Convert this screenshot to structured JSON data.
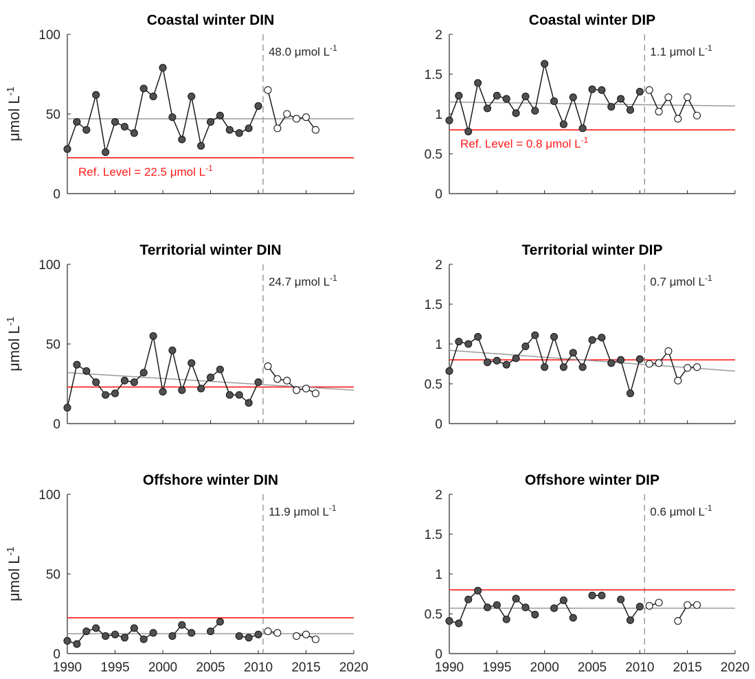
{
  "chart_data": [
    {
      "type": "line",
      "title": "Coastal winter DIN",
      "ylabel": "μmol L⁻¹",
      "ylim": [
        0,
        100
      ],
      "yticks": [
        "0",
        "50",
        "100"
      ],
      "xlim": [
        1990,
        2020
      ],
      "xticks": [],
      "assessment_year": 2010.5,
      "assessment_label": "48.0 μmol L⁻¹",
      "ref_level": 22.5,
      "ref_label": "Ref. Level = 22.5 μmol L⁻¹",
      "trend": [
        [
          1990,
          47
        ],
        [
          2020,
          47
        ]
      ],
      "series": [
        {
          "name": "filled",
          "points": [
            [
              1990,
              28
            ],
            [
              1991,
              45
            ],
            [
              1992,
              40
            ],
            [
              1993,
              62
            ],
            [
              1994,
              26
            ],
            [
              1995,
              45
            ],
            [
              1996,
              42
            ],
            [
              1997,
              38
            ],
            [
              1998,
              66
            ],
            [
              1999,
              61
            ],
            [
              2000,
              79
            ],
            [
              2001,
              48
            ],
            [
              2002,
              34
            ],
            [
              2003,
              61
            ],
            [
              2004,
              30
            ],
            [
              2005,
              45
            ],
            [
              2006,
              49
            ],
            [
              2007,
              40
            ],
            [
              2008,
              38
            ],
            [
              2009,
              41
            ],
            [
              2010,
              55
            ]
          ]
        },
        {
          "name": "open",
          "points": [
            [
              2011,
              65
            ],
            [
              2012,
              41
            ],
            [
              2013,
              50
            ],
            [
              2014,
              47
            ],
            [
              2015,
              48
            ],
            [
              2016,
              40
            ]
          ]
        }
      ]
    },
    {
      "type": "line",
      "title": "Coastal winter DIP",
      "ylabel": "",
      "ylim": [
        0,
        2
      ],
      "yticks": [
        "0",
        "0.5",
        "1",
        "1.5",
        "2"
      ],
      "xlim": [
        1990,
        2020
      ],
      "xticks": [],
      "assessment_year": 2010.5,
      "assessment_label": "1.1 μmol L⁻¹",
      "ref_level": 0.8,
      "ref_label": "Ref. Level = 0.8 μmol L⁻¹",
      "trend": [
        [
          1990,
          1.15
        ],
        [
          2020,
          1.1
        ]
      ],
      "series": [
        {
          "name": "filled",
          "points": [
            [
              1990,
              0.92
            ],
            [
              1991,
              1.23
            ],
            [
              1992,
              0.78
            ],
            [
              1993,
              1.39
            ],
            [
              1994,
              1.07
            ],
            [
              1995,
              1.23
            ],
            [
              1996,
              1.19
            ],
            [
              1997,
              1.01
            ],
            [
              1998,
              1.22
            ],
            [
              1999,
              1.04
            ],
            [
              2000,
              1.63
            ],
            [
              2001,
              1.16
            ],
            [
              2002,
              0.87
            ],
            [
              2003,
              1.21
            ],
            [
              2004,
              0.82
            ],
            [
              2005,
              1.31
            ],
            [
              2006,
              1.3
            ],
            [
              2007,
              1.09
            ],
            [
              2008,
              1.19
            ],
            [
              2009,
              1.05
            ],
            [
              2010,
              1.28
            ]
          ]
        },
        {
          "name": "open",
          "points": [
            [
              2011,
              1.3
            ],
            [
              2012,
              1.03
            ],
            [
              2013,
              1.21
            ],
            [
              2014,
              0.94
            ],
            [
              2015,
              1.21
            ],
            [
              2016,
              0.98
            ]
          ]
        }
      ]
    },
    {
      "type": "line",
      "title": "Territorial winter DIN",
      "ylabel": "μmol L⁻¹",
      "ylim": [
        0,
        100
      ],
      "yticks": [
        "0",
        "50",
        "100"
      ],
      "xlim": [
        1990,
        2020
      ],
      "xticks": [],
      "assessment_year": 2010.5,
      "assessment_label": "24.7 μmol L⁻¹",
      "ref_level": 23,
      "ref_label": "",
      "trend": [
        [
          1990,
          32
        ],
        [
          2020,
          21
        ]
      ],
      "series": [
        {
          "name": "filled",
          "points": [
            [
              1990,
              10
            ],
            [
              1991,
              37
            ],
            [
              1992,
              33
            ],
            [
              1993,
              26
            ],
            [
              1994,
              18
            ],
            [
              1995,
              19
            ],
            [
              1996,
              27
            ],
            [
              1997,
              26
            ],
            [
              1998,
              32
            ],
            [
              1999,
              55
            ],
            [
              2000,
              20
            ],
            [
              2001,
              46
            ],
            [
              2002,
              21
            ],
            [
              2003,
              38
            ],
            [
              2004,
              22
            ],
            [
              2005,
              29
            ],
            [
              2006,
              34
            ],
            [
              2007,
              18
            ],
            [
              2008,
              18
            ],
            [
              2009,
              13
            ],
            [
              2010,
              26
            ]
          ]
        },
        {
          "name": "open",
          "points": [
            [
              2011,
              36
            ],
            [
              2012,
              28
            ],
            [
              2013,
              27
            ],
            [
              2014,
              21
            ],
            [
              2015,
              22
            ],
            [
              2016,
              19
            ]
          ]
        }
      ]
    },
    {
      "type": "line",
      "title": "Territorial winter DIP",
      "ylabel": "",
      "ylim": [
        0,
        2
      ],
      "yticks": [
        "0",
        "0.5",
        "1",
        "1.5",
        "2"
      ],
      "xlim": [
        1990,
        2020
      ],
      "xticks": [],
      "assessment_year": 2010.5,
      "assessment_label": "0.7 μmol L⁻¹",
      "ref_level": 0.8,
      "ref_label": "",
      "trend": [
        [
          1990,
          0.92
        ],
        [
          2020,
          0.66
        ]
      ],
      "series": [
        {
          "name": "filled",
          "points": [
            [
              1990,
              0.66
            ],
            [
              1991,
              1.03
            ],
            [
              1992,
              1.0
            ],
            [
              1993,
              1.09
            ],
            [
              1994,
              0.77
            ],
            [
              1995,
              0.79
            ],
            [
              1996,
              0.74
            ],
            [
              1997,
              0.82
            ],
            [
              1998,
              0.97
            ],
            [
              1999,
              1.11
            ],
            [
              2000,
              0.71
            ],
            [
              2001,
              1.09
            ],
            [
              2002,
              0.71
            ],
            [
              2003,
              0.89
            ],
            [
              2004,
              0.71
            ],
            [
              2005,
              1.05
            ],
            [
              2006,
              1.08
            ],
            [
              2007,
              0.76
            ],
            [
              2008,
              0.8
            ],
            [
              2009,
              0.38
            ],
            [
              2010,
              0.81
            ]
          ]
        },
        {
          "name": "open",
          "points": [
            [
              2011,
              0.75
            ],
            [
              2012,
              0.76
            ],
            [
              2013,
              0.91
            ],
            [
              2014,
              0.54
            ],
            [
              2015,
              0.7
            ],
            [
              2016,
              0.71
            ]
          ]
        }
      ]
    },
    {
      "type": "line",
      "title": "Offshore winter DIN",
      "ylabel": "μmol L⁻¹",
      "ylim": [
        0,
        100
      ],
      "yticks": [
        "0",
        "50",
        "100"
      ],
      "xlim": [
        1990,
        2020
      ],
      "xticks": [
        "1990",
        "1995",
        "2000",
        "2005",
        "2010",
        "2015",
        "2020"
      ],
      "assessment_year": 2010.5,
      "assessment_label": "11.9 μmol L⁻¹",
      "ref_level": 22.5,
      "ref_label": "",
      "trend": [
        [
          1990,
          12.5
        ],
        [
          2020,
          12.5
        ]
      ],
      "series": [
        {
          "name": "filled",
          "points": [
            [
              1990,
              8
            ],
            [
              1991,
              6
            ],
            [
              1992,
              14
            ],
            [
              1993,
              16
            ],
            [
              1994,
              11
            ],
            [
              1995,
              12
            ],
            [
              1996,
              10
            ],
            [
              1997,
              16
            ],
            [
              1998,
              9
            ],
            [
              1999,
              13
            ],
            [
              2000,
              null
            ],
            [
              2001,
              11
            ],
            [
              2002,
              18
            ],
            [
              2003,
              13
            ],
            [
              2004,
              null
            ],
            [
              2005,
              14
            ],
            [
              2006,
              20
            ],
            [
              2007,
              null
            ],
            [
              2008,
              11
            ],
            [
              2009,
              10
            ],
            [
              2010,
              12
            ]
          ]
        },
        {
          "name": "open",
          "points": [
            [
              2011,
              14
            ],
            [
              2012,
              13
            ],
            [
              2013,
              null
            ],
            [
              2014,
              11
            ],
            [
              2015,
              12
            ],
            [
              2016,
              9
            ]
          ]
        }
      ]
    },
    {
      "type": "line",
      "title": "Offshore winter DIP",
      "ylabel": "",
      "ylim": [
        0,
        2
      ],
      "yticks": [
        "0",
        "0.5",
        "1",
        "1.5",
        "2"
      ],
      "xlim": [
        1990,
        2020
      ],
      "xticks": [
        "1990",
        "1995",
        "2000",
        "2005",
        "2010",
        "2015",
        "2020"
      ],
      "assessment_year": 2010.5,
      "assessment_label": "0.6 μmol L⁻¹",
      "ref_level": 0.8,
      "ref_label": "",
      "trend": [
        [
          1990,
          0.57
        ],
        [
          2020,
          0.57
        ]
      ],
      "series": [
        {
          "name": "filled",
          "points": [
            [
              1990,
              0.41
            ],
            [
              1991,
              0.38
            ],
            [
              1992,
              0.68
            ],
            [
              1993,
              0.79
            ],
            [
              1994,
              0.58
            ],
            [
              1995,
              0.61
            ],
            [
              1996,
              0.43
            ],
            [
              1997,
              0.69
            ],
            [
              1998,
              0.58
            ],
            [
              1999,
              0.49
            ],
            [
              2000,
              null
            ],
            [
              2001,
              0.57
            ],
            [
              2002,
              0.67
            ],
            [
              2003,
              0.45
            ],
            [
              2004,
              null
            ],
            [
              2005,
              0.73
            ],
            [
              2006,
              0.73
            ],
            [
              2007,
              null
            ],
            [
              2008,
              0.68
            ],
            [
              2009,
              0.42
            ],
            [
              2010,
              0.59
            ]
          ]
        },
        {
          "name": "open",
          "points": [
            [
              2011,
              0.6
            ],
            [
              2012,
              0.64
            ],
            [
              2013,
              null
            ],
            [
              2014,
              0.41
            ],
            [
              2015,
              0.61
            ],
            [
              2016,
              0.61
            ]
          ]
        }
      ]
    }
  ]
}
